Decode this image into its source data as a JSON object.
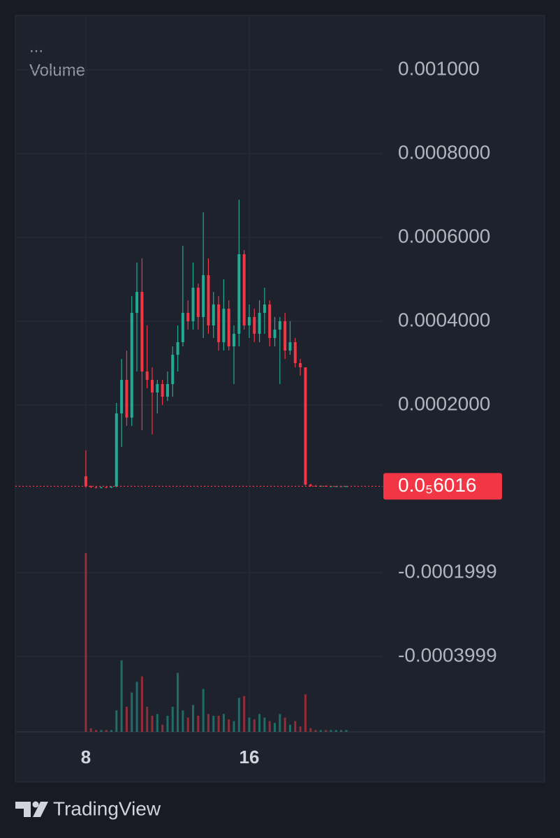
{
  "chart_data": {
    "type": "candlestick",
    "legend_ellipsis": "...",
    "volume_label": "Volume",
    "x": [
      8,
      8.25,
      8.5,
      8.75,
      9,
      9.25,
      9.5,
      9.75,
      10,
      10.25,
      10.5,
      10.75,
      11,
      11.25,
      11.5,
      11.75,
      12,
      12.25,
      12.5,
      12.75,
      13,
      13.25,
      13.5,
      13.75,
      14,
      14.25,
      14.5,
      14.75,
      15,
      15.25,
      15.5,
      15.75,
      16,
      16.25,
      16.5,
      16.75,
      17,
      17.25,
      17.5,
      17.75,
      18,
      18.25,
      18.5,
      18.75,
      19,
      19.25,
      19.5,
      19.75,
      20,
      20.25,
      20.5,
      20.75
    ],
    "open": [
      3e-05,
      6e-06,
      4e-06,
      3e-06,
      4e-06,
      3e-06,
      5e-06,
      0.00018,
      0.00026,
      0.00017,
      0.00042,
      0.00047,
      0.00028,
      0.00026,
      0.00023,
      0.00025,
      0.00022,
      0.00025,
      0.00032,
      0.00035,
      0.00042,
      0.0004,
      0.00048,
      0.00041,
      0.00051,
      0.00039,
      0.00044,
      0.00035,
      0.00043,
      0.00034,
      0.00037,
      0.00056,
      0.00039,
      0.00041,
      0.00037,
      0.00042,
      0.00044,
      0.00036,
      0.00038,
      0.0004,
      0.00033,
      0.00035,
      0.0003,
      0.00029,
      1e-05,
      7e-06,
      6e-06,
      7e-06,
      6e-06,
      6e-06,
      6e-06,
      6e-06
    ],
    "high": [
      9.2e-05,
      8e-06,
      6e-06,
      5e-06,
      6e-06,
      6e-06,
      0.000205,
      0.00031,
      0.00033,
      0.00046,
      0.00054,
      0.00055,
      0.00039,
      0.00029,
      0.00026,
      0.00026,
      0.00028,
      0.00034,
      0.00039,
      0.00058,
      0.00045,
      0.00054,
      0.00049,
      0.00066,
      0.00055,
      0.00047,
      0.00046,
      0.0005,
      0.00045,
      0.00039,
      0.00069,
      0.00057,
      0.00044,
      0.00043,
      0.00045,
      0.00048,
      0.00045,
      0.00041,
      0.00041,
      0.00042,
      0.0004,
      0.00036,
      0.00031,
      0.00029,
      1.2e-05,
      9e-06,
      8e-06,
      8e-06,
      7e-06,
      7e-06,
      7e-06,
      7e-06
    ],
    "low": [
      3e-06,
      2e-06,
      1e-06,
      1e-06,
      2e-06,
      2e-06,
      4e-06,
      0.0001,
      0.00015,
      0.00015,
      0.00028,
      0.00014,
      0.00024,
      0.00013,
      0.00018,
      0.0002,
      0.00021,
      0.00022,
      0.00028,
      0.00034,
      0.00038,
      0.00038,
      0.00038,
      0.00036,
      0.00037,
      0.00036,
      0.00033,
      0.00033,
      0.00033,
      0.00025,
      0.00034,
      0.00038,
      0.00036,
      0.00035,
      0.00035,
      0.00037,
      0.00034,
      0.00034,
      0.00025,
      0.00031,
      0.00032,
      0.00029,
      0.00027,
      8e-06,
      5e-06,
      5e-06,
      5e-06,
      5e-06,
      5e-06,
      5e-06,
      5e-06,
      5e-06
    ],
    "close": [
      6e-06,
      4e-06,
      3e-06,
      4e-06,
      3e-06,
      5e-06,
      0.00018,
      0.00026,
      0.00017,
      0.00042,
      0.00047,
      0.00028,
      0.00026,
      0.00023,
      0.00025,
      0.00022,
      0.00025,
      0.00032,
      0.00035,
      0.00042,
      0.0004,
      0.00048,
      0.00041,
      0.00051,
      0.00039,
      0.00044,
      0.00035,
      0.00043,
      0.00034,
      0.00037,
      0.00056,
      0.00039,
      0.00041,
      0.00037,
      0.00042,
      0.00044,
      0.00036,
      0.00038,
      0.0004,
      0.00033,
      0.00035,
      0.0003,
      0.00029,
      1e-05,
      7e-06,
      6e-06,
      7e-06,
      6e-06,
      6e-06,
      6e-06,
      6e-06,
      6.0016e-06
    ],
    "volume": [
      100,
      2,
      1,
      1,
      1,
      1,
      12,
      40,
      14,
      22,
      28,
      31,
      14,
      9,
      10,
      4,
      9,
      14,
      33,
      12,
      8,
      15,
      9,
      24,
      10,
      9,
      9,
      10,
      7,
      6,
      19,
      20,
      8,
      7,
      10,
      8,
      6,
      5,
      10,
      8,
      4,
      6,
      3,
      21,
      2,
      1,
      1,
      1,
      1,
      1,
      1,
      1
    ],
    "up_color": "#22ab94",
    "down_color": "#f23645",
    "last_price": {
      "value": 6.0016e-06,
      "label": "0.0₅6016"
    },
    "xlim": [
      4.55,
      22.53
    ],
    "ylim": [
      -0.00058,
      0.00113
    ],
    "xticks": [
      8,
      16
    ],
    "yticks": [
      {
        "value": 0.001,
        "label": "0.001000"
      },
      {
        "value": 0.0008,
        "label": "0.0008000"
      },
      {
        "value": 0.0006,
        "label": "0.0006000"
      },
      {
        "value": 0.0004,
        "label": "0.0004000"
      },
      {
        "value": 0.0002,
        "label": "0.0002000"
      },
      -0.0001999,
      -0.0003999
    ],
    "grid": true
  },
  "footer": {
    "brand": "TradingView"
  }
}
